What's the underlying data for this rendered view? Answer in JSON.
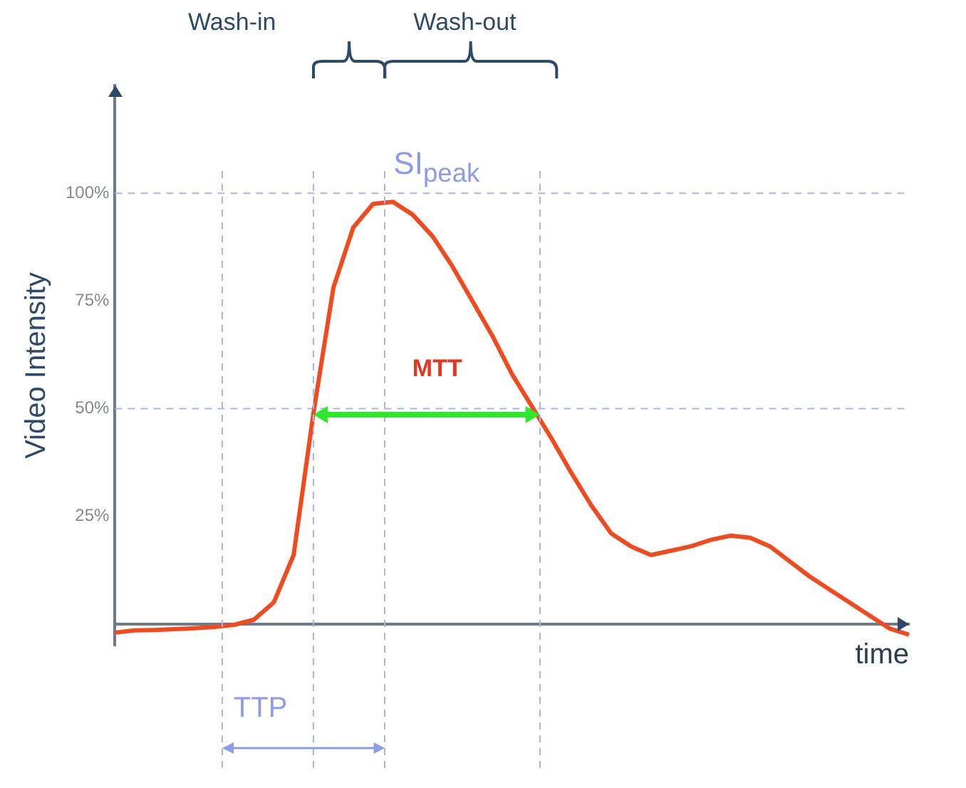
{
  "chart_data": {
    "type": "line",
    "xlabel": "time",
    "ylabel": "Video Intensity",
    "categories": [
      null,
      null,
      null,
      null,
      null,
      null,
      null,
      null,
      null,
      null,
      null,
      null,
      null,
      null,
      null,
      null,
      null,
      null,
      null,
      null,
      null,
      null,
      null,
      null,
      null,
      null,
      null,
      null,
      null,
      null,
      null,
      null,
      null,
      null,
      null,
      null,
      null,
      null,
      null,
      null,
      null
    ],
    "series": [
      {
        "color": "#f04a1e",
        "values": [
          -2,
          -1.5,
          -1.4,
          -1.2,
          -1,
          -0.7,
          -0.2,
          1,
          5,
          16,
          49,
          78,
          92,
          97.5,
          98,
          95,
          90,
          83,
          75,
          67,
          58,
          50.5,
          43,
          35,
          27.5,
          21,
          18,
          16,
          17,
          18,
          19.5,
          20.5,
          20,
          18,
          14.5,
          11,
          8,
          5,
          2,
          -1,
          -2.5
        ]
      }
    ],
    "ylim": [
      -5,
      125
    ],
    "yticks": [
      {
        "value": 25,
        "label": "25%"
      },
      {
        "value": 50,
        "label": "50%"
      },
      {
        "value": 75,
        "label": "75%"
      },
      {
        "value": 100,
        "label": "100%"
      }
    ],
    "ref_lines": [
      {
        "axis": "y",
        "value": 100,
        "color": "#aab4f0",
        "line_style": "dashed"
      },
      {
        "axis": "y",
        "value": 50,
        "color": "#aab4f0",
        "line_style": "dashed"
      }
    ],
    "annotations": [
      "Wash-in",
      "Wash-out",
      "SI$_{peak}$",
      "MTT",
      "TTP"
    ],
    "grid": false,
    "legend": false,
    "marker": "none",
    "line_style": "solid",
    "tick_labels": "y"
  }
}
